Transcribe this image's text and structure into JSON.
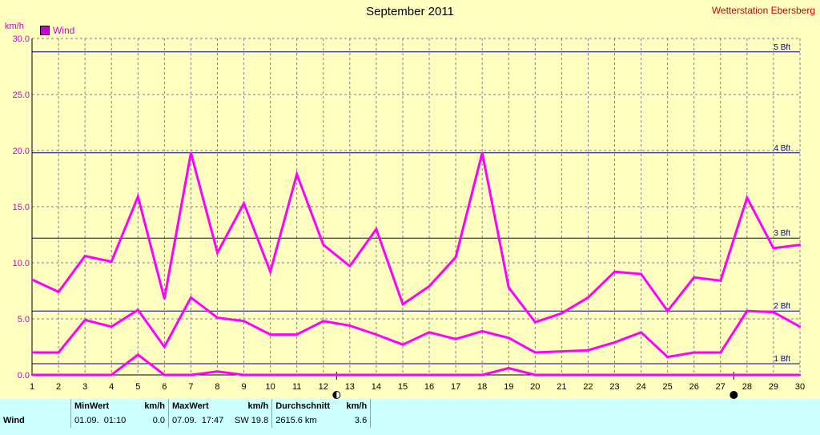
{
  "title": "September 2011",
  "station": "Wetterstation Ebersberg",
  "unit": "km/h",
  "legend": {
    "label": "Wind"
  },
  "colors": {
    "series": "#ff00ff",
    "bft": "#000080",
    "grid": "#808080",
    "background": "#ffffc0",
    "footer": "#ccffff"
  },
  "chart_data": {
    "type": "line",
    "title": "September 2011",
    "ylabel": "km/h",
    "ylim": [
      0,
      30
    ],
    "yticks": [
      "0.0",
      "5.0",
      "10.0",
      "15.0",
      "20.0",
      "25.0",
      "30.0"
    ],
    "xlim": [
      1,
      30
    ],
    "x": [
      1,
      2,
      3,
      4,
      5,
      6,
      7,
      8,
      9,
      10,
      11,
      12,
      13,
      14,
      15,
      16,
      17,
      18,
      19,
      20,
      21,
      22,
      23,
      24,
      25,
      26,
      27,
      28,
      29,
      30
    ],
    "grid": true,
    "legend_position": "top-left",
    "series": [
      {
        "name": "Wind",
        "role": "max",
        "values": [
          8.5,
          7.4,
          10.6,
          10.1,
          15.9,
          6.8,
          19.8,
          10.9,
          15.3,
          9.2,
          17.9,
          11.6,
          9.7,
          13.0,
          6.3,
          7.9,
          10.5,
          19.8,
          7.8,
          4.7,
          5.5,
          6.9,
          9.2,
          9.0,
          5.7,
          8.7,
          8.4,
          15.8,
          11.3,
          11.6
        ]
      },
      {
        "name": "Wind",
        "role": "mean",
        "values": [
          2.0,
          2.0,
          4.9,
          4.3,
          5.8,
          2.5,
          6.9,
          5.1,
          4.8,
          3.6,
          3.6,
          4.8,
          4.4,
          3.6,
          2.7,
          3.8,
          3.2,
          3.9,
          3.3,
          2.0,
          2.1,
          2.2,
          2.9,
          3.8,
          1.6,
          2.0,
          2.0,
          5.7,
          5.6,
          4.3
        ]
      },
      {
        "name": "Wind",
        "role": "min",
        "values": [
          0,
          0,
          0,
          0,
          1.8,
          0,
          0,
          0.3,
          0,
          0,
          0,
          0,
          0,
          0,
          0,
          0,
          0,
          0,
          0.6,
          0,
          0,
          0,
          0,
          0,
          0,
          0,
          0,
          0,
          0,
          0
        ]
      }
    ],
    "beaufort_lines": [
      {
        "label": "1 Bft",
        "value": 1.0
      },
      {
        "label": "2 Bft",
        "value": 5.7
      },
      {
        "label": "3 Bft",
        "value": 12.2
      },
      {
        "label": "4 Bft",
        "value": 19.8
      },
      {
        "label": "5 Bft",
        "value": 28.8
      }
    ],
    "moon_phases": [
      {
        "day": 12.5,
        "phase": "first-quarter"
      },
      {
        "day": 27.5,
        "phase": "new-moon"
      }
    ]
  },
  "footer": {
    "headers": {
      "min": "MinWert",
      "min_unit": "km/h",
      "max": "MaxWert",
      "max_unit": "km/h",
      "avg": "Durchschnitt",
      "avg_unit": "km/h"
    },
    "rows": [
      {
        "label": "Wind",
        "min_date": "01.09.",
        "min_time": "01:10",
        "min_val": "0.0",
        "max_date": "07.09.",
        "max_time": "17:47",
        "max_dir": "SW",
        "max_val": "19.8",
        "distance": "2615.6 km",
        "avg_val": "3.6"
      }
    ]
  }
}
